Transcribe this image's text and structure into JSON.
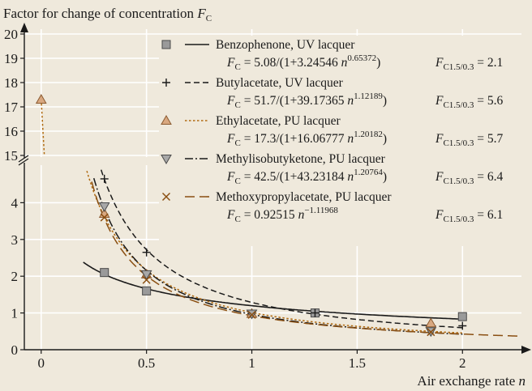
{
  "chart_data": {
    "type": "line",
    "title": "",
    "ylabel": "Factor for change of concentration F_C",
    "ylabel_parts": {
      "text": "Factor for change of concentration ",
      "symbol": "F",
      "sub": "C"
    },
    "xlabel": "Air exchange rate n",
    "xlabel_parts": {
      "text": "Air exchange rate ",
      "symbol": "n"
    },
    "xlim": [
      -0.08,
      2.28
    ],
    "ylim_lower": [
      0,
      5
    ],
    "ylim_upper": [
      15,
      20
    ],
    "axis_break": "y between 5 and 15",
    "x_ticks": [
      "0",
      "0.5",
      "1",
      "1.5",
      "2"
    ],
    "y_ticks_lower": [
      "0",
      "1",
      "2",
      "3",
      "4"
    ],
    "y_ticks_upper": [
      "15",
      "16",
      "17",
      "18",
      "19",
      "20"
    ],
    "grid": true,
    "legend_position": "top-right",
    "series": [
      {
        "name": "Benzophenone, UV lacquer",
        "marker": "square",
        "line_style": "solid",
        "color": "#1a1a1a",
        "formula": {
          "lhs": "F",
          "lhs_sub": "C",
          "rhs": " = 5.08/(1+3.24546 ",
          "var": "n",
          "exp": "0.65372",
          "tail": ")"
        },
        "ratio": {
          "sym": "F",
          "sub": "C1.5/0.3",
          "value": " = 2.1"
        },
        "fit": {
          "A": 5.08,
          "B": 3.24546,
          "c": 0.65372,
          "form": "rational"
        },
        "x": [
          0.3,
          0.5,
          1.3,
          2.0
        ],
        "y": [
          2.1,
          1.6,
          1.0,
          0.9
        ],
        "curve_x": [
          0.2,
          2.0
        ]
      },
      {
        "name": "Butylacetate, UV lacquer",
        "marker": "plus",
        "line_style": "dashed",
        "color": "#1a1a1a",
        "formula": {
          "lhs": "F",
          "lhs_sub": "C",
          "rhs": " = 51.7/(1+39.17365 ",
          "var": "n",
          "exp": "1.12189",
          "tail": ")"
        },
        "ratio": {
          "sym": "F",
          "sub": "C1.5/0.3",
          "value": " = 5.6"
        },
        "fit": {
          "A": 51.7,
          "B": 39.17365,
          "c": 1.12189,
          "form": "rational"
        },
        "x": [
          0.3,
          0.5,
          1.3,
          2.0
        ],
        "y": [
          4.65,
          2.65,
          1.0,
          0.65
        ],
        "curve_x": [
          0.27,
          2.0
        ]
      },
      {
        "name": "Ethylacetate, PU lacquer",
        "marker": "triangle-up",
        "line_style": "dotted",
        "color": "#b06a10",
        "formula": {
          "lhs": "F",
          "lhs_sub": "C",
          "rhs": " = 17.3/(1+16.06777 ",
          "var": "n",
          "exp": "1.20182",
          "tail": ")"
        },
        "ratio": {
          "sym": "F",
          "sub": "C1.5/0.3",
          "value": " = 5.7"
        },
        "fit": {
          "A": 17.3,
          "B": 16.06777,
          "c": 1.20182,
          "form": "rational"
        },
        "x": [
          0,
          0.3,
          0.5,
          1.0,
          1.85
        ],
        "y": [
          17.3,
          3.7,
          2.05,
          0.98,
          0.72
        ],
        "curve_x": [
          0,
          2.0
        ]
      },
      {
        "name": "Methylisobutyketone, PU lacquer",
        "marker": "triangle-down",
        "line_style": "dashdot",
        "color": "#1a1a1a",
        "formula": {
          "lhs": "F",
          "lhs_sub": "C",
          "rhs": " = 42.5/(1+43.23184 ",
          "var": "n",
          "exp": "1.20764",
          "tail": ")"
        },
        "ratio": {
          "sym": "F",
          "sub": "C1.5/0.3",
          "value": " = 6.4"
        },
        "fit": {
          "A": 42.5,
          "B": 43.23184,
          "c": 1.20764,
          "form": "rational"
        },
        "x": [
          0.3,
          0.5,
          1.0,
          1.85
        ],
        "y": [
          3.9,
          2.05,
          0.98,
          0.5
        ],
        "curve_x": [
          0.25,
          2.0
        ]
      },
      {
        "name": "Methoxypropylacetate, PU lacquer",
        "marker": "cross",
        "line_style": "longdash",
        "color": "#8a4f12",
        "formula": {
          "lhs": "F",
          "lhs_sub": "C",
          "rhs": " = 0.92515 ",
          "var": "n",
          "exp": "−1.11968",
          "tail": ""
        },
        "ratio": {
          "sym": "F",
          "sub": "C1.5/0.3",
          "value": " = 6.1"
        },
        "fit": {
          "A": 0.92515,
          "c": -1.11968,
          "form": "power"
        },
        "x": [
          0.3,
          0.5,
          1.0,
          1.85
        ],
        "y": [
          3.6,
          1.9,
          0.95,
          0.48
        ],
        "curve_x": [
          0.24,
          2.28
        ]
      }
    ]
  }
}
